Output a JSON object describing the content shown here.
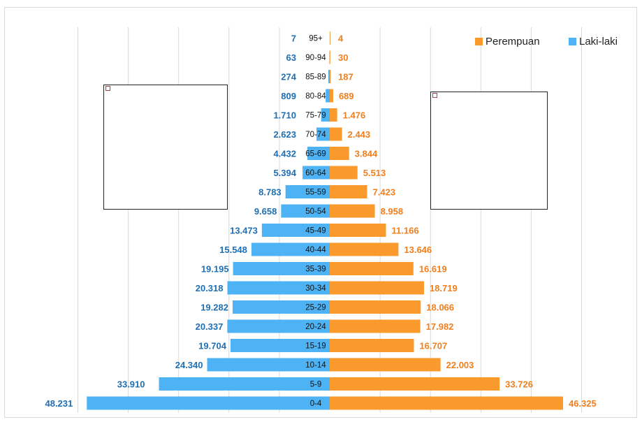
{
  "chart_data": {
    "type": "bar",
    "orientation": "horizontal",
    "subtype": "population-pyramid",
    "categories": [
      "0-4",
      "5-9",
      "10-14",
      "15-19",
      "20-24",
      "25-29",
      "30-34",
      "35-39",
      "40-44",
      "45-49",
      "50-54",
      "55-59",
      "60-64",
      "65-69",
      "70-74",
      "75-79",
      "80-84",
      "85-89",
      "90-94",
      "95+"
    ],
    "series": [
      {
        "name": "Laki-laki",
        "color": "#4db3f5",
        "label_color": "#1f6fb4",
        "side": "left",
        "values": [
          48231,
          33910,
          24340,
          19704,
          20337,
          19282,
          20318,
          19195,
          15548,
          13473,
          9658,
          8783,
          5394,
          4432,
          2623,
          1710,
          809,
          274,
          63,
          7
        ],
        "labels": [
          "48.231",
          "33.910",
          "24.340",
          "19.704",
          "20.337",
          "19.282",
          "20.318",
          "19.195",
          "15.548",
          "13.473",
          "9.658",
          "8.783",
          "5.394",
          "4.432",
          "2.623",
          "1.710",
          "809",
          "274",
          "63",
          "7"
        ]
      },
      {
        "name": "Perempuan",
        "color": "#fb9a2c",
        "label_color": "#ef7f1f",
        "side": "right",
        "values": [
          46325,
          33726,
          22003,
          16707,
          17982,
          18066,
          18719,
          16619,
          13646,
          11166,
          8958,
          7423,
          5513,
          3844,
          2443,
          1476,
          689,
          187,
          30,
          4
        ],
        "labels": [
          "46.325",
          "33.726",
          "22.003",
          "16.707",
          "17.982",
          "18.066",
          "18.719",
          "16.619",
          "13.646",
          "11.166",
          "8.958",
          "7.423",
          "5.513",
          "3.844",
          "2.443",
          "1.476",
          "689",
          "187",
          "30",
          "4"
        ]
      }
    ],
    "legend_position": "top-right",
    "xlim": [
      -50000,
      50000
    ],
    "grid": true,
    "grid_step": 10000
  }
}
